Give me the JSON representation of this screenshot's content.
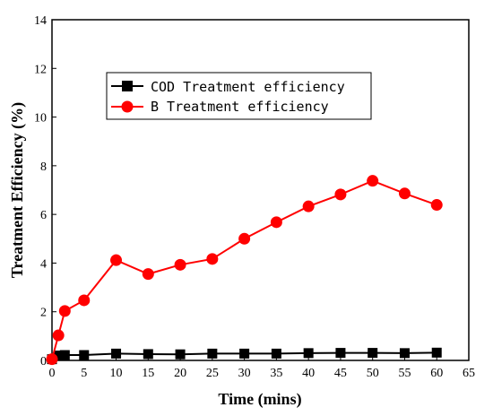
{
  "chart_data": {
    "type": "line",
    "xlabel": "Time (mins)",
    "ylabel": "Treatment Efficiency (%)",
    "xlim": [
      0,
      65
    ],
    "ylim": [
      0,
      14
    ],
    "x_ticks": [
      0,
      5,
      10,
      15,
      20,
      25,
      30,
      35,
      40,
      45,
      50,
      55,
      60,
      65
    ],
    "y_ticks": [
      0,
      2,
      4,
      6,
      8,
      10,
      12,
      14
    ],
    "grid": false,
    "legend_position": "upper-left",
    "series": [
      {
        "name": "COD Treatment efficiency",
        "color": "#000000",
        "marker": "square",
        "x": [
          0,
          1,
          2,
          5,
          10,
          15,
          20,
          25,
          30,
          35,
          40,
          45,
          50,
          55,
          60
        ],
        "y": [
          0.05,
          0.2,
          0.22,
          0.22,
          0.28,
          0.26,
          0.25,
          0.28,
          0.28,
          0.28,
          0.3,
          0.31,
          0.31,
          0.3,
          0.32
        ]
      },
      {
        "name": "B Treatment efficiency",
        "color": "#ff0000",
        "marker": "circle",
        "x": [
          0,
          1,
          2,
          5,
          10,
          15,
          20,
          25,
          30,
          35,
          40,
          45,
          50,
          55,
          60
        ],
        "y": [
          0.05,
          1.03,
          2.03,
          2.47,
          4.12,
          3.55,
          3.93,
          4.17,
          5.0,
          5.68,
          6.33,
          6.82,
          7.38,
          6.86,
          6.39
        ]
      }
    ]
  }
}
